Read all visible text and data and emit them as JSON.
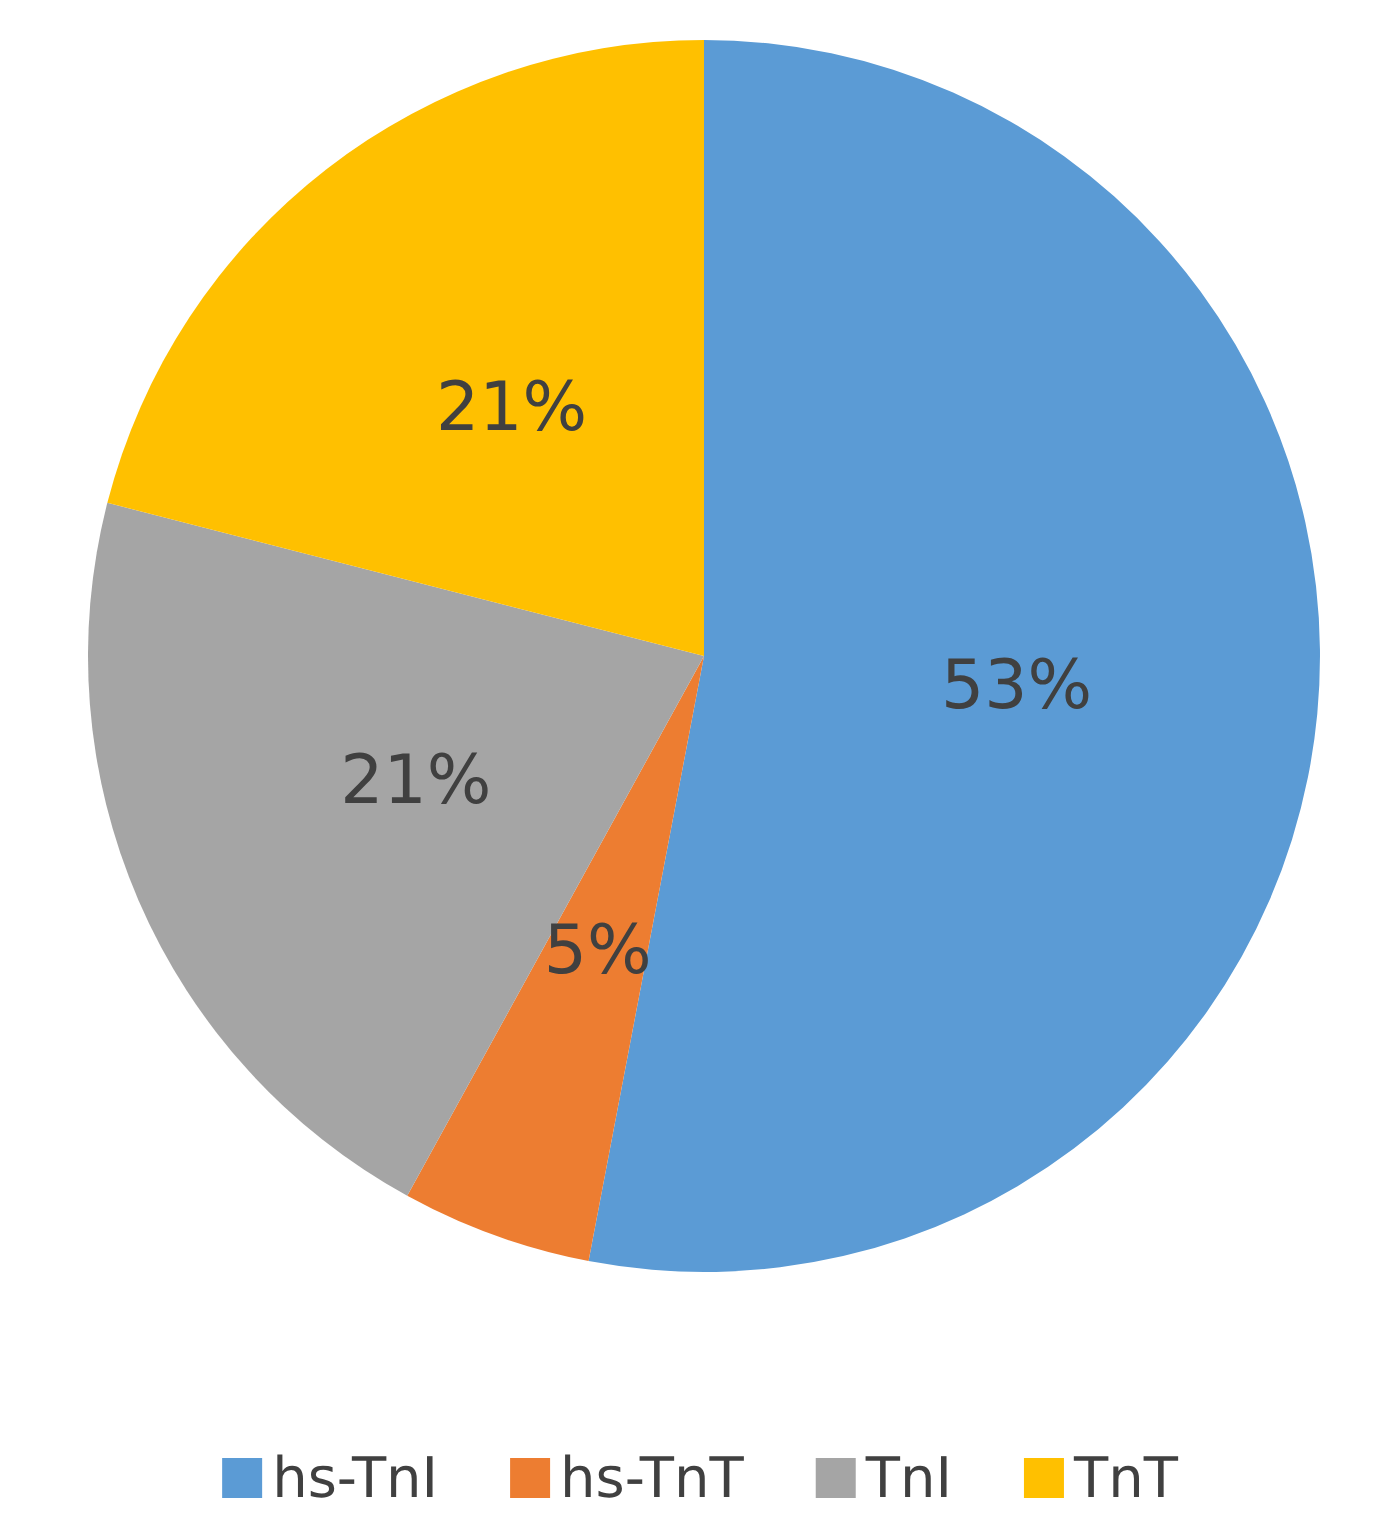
{
  "chart_data": {
    "type": "pie",
    "categories": [
      "hs-TnI",
      "hs-TnT",
      "TnI",
      "TnT"
    ],
    "values": [
      53,
      5,
      21,
      21
    ],
    "colors": [
      "#5b9bd5",
      "#ed7d31",
      "#a5a5a5",
      "#ffc000"
    ],
    "value_labels": [
      "53%",
      "5%",
      "21%",
      "21%"
    ],
    "legend": "bottom"
  }
}
